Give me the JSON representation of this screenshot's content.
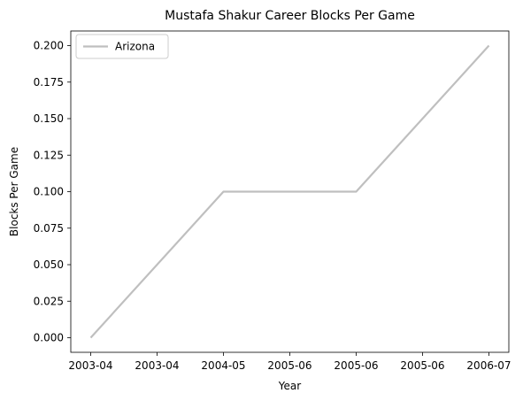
{
  "chart_data": {
    "type": "line",
    "title": "Mustafa Shakur Career Blocks Per Game",
    "xlabel": "Year",
    "ylabel": "Blocks Per Game",
    "x_tick_labels": [
      "2003-04",
      "2003-04",
      "2004-05",
      "2005-06",
      "2005-06",
      "2005-06",
      "2006-07"
    ],
    "x_tick_values": [
      0,
      0.5,
      1,
      1.5,
      2,
      2.5,
      3
    ],
    "y_tick_labels": [
      "0.000",
      "0.025",
      "0.050",
      "0.075",
      "0.100",
      "0.125",
      "0.150",
      "0.175",
      "0.200"
    ],
    "y_tick_values": [
      0,
      0.025,
      0.05,
      0.075,
      0.1,
      0.125,
      0.15,
      0.175,
      0.2
    ],
    "xlim": [
      -0.15,
      3.15
    ],
    "ylim": [
      -0.01,
      0.21
    ],
    "grid": false,
    "legend_position": "upper-left",
    "series": [
      {
        "name": "Arizona",
        "color": "#bfbfbf",
        "x": [
          "2003-04",
          "2004-05",
          "2005-06",
          "2006-07"
        ],
        "x_index": [
          0,
          1,
          2,
          3
        ],
        "y": [
          0.0,
          0.1,
          0.1,
          0.2
        ]
      }
    ]
  }
}
